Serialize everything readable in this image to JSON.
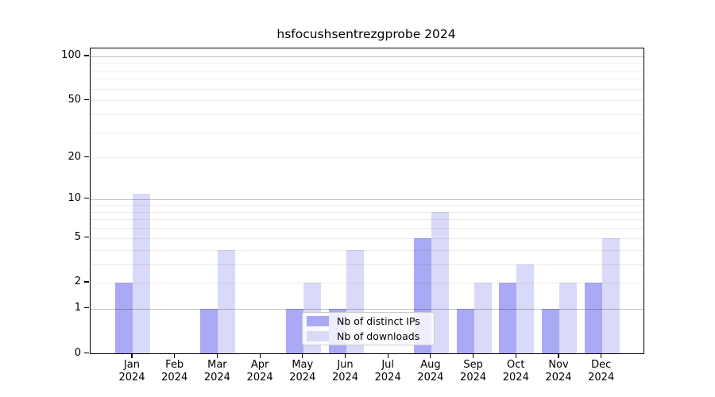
{
  "chart_data": {
    "type": "bar",
    "title": "hsfocushsentrezgprobe 2024",
    "categories": [
      "Jan",
      "Feb",
      "Mar",
      "Apr",
      "May",
      "Jun",
      "Jul",
      "Aug",
      "Sep",
      "Oct",
      "Nov",
      "Dec"
    ],
    "category_year": "2024",
    "series": [
      {
        "name": "Nb of distinct IPs",
        "color": "#a9a9f6",
        "values": [
          2,
          0,
          1,
          0,
          1,
          1,
          0,
          5,
          1,
          2,
          1,
          2
        ]
      },
      {
        "name": "Nb of downloads",
        "color": "#d9d9f8",
        "values": [
          11,
          0,
          4,
          0,
          2,
          4,
          0,
          8,
          2,
          3,
          2,
          5
        ]
      }
    ],
    "xlabel": "",
    "ylabel": "",
    "y_scale": "log10(1+x)",
    "y_ticks": [
      0,
      1,
      2,
      5,
      10,
      20,
      50,
      100
    ],
    "y_minor_gridlines": [
      2,
      3,
      4,
      5,
      6,
      7,
      8,
      9,
      20,
      30,
      40,
      50,
      60,
      70,
      80,
      90
    ],
    "y_major_gridlines": [
      1,
      10,
      100
    ],
    "ylim": [
      0,
      113
    ],
    "grid": true,
    "legend_position": "inside-lower-center"
  },
  "colors": {
    "axis": "#000000",
    "legend_border": "#cccccc"
  }
}
